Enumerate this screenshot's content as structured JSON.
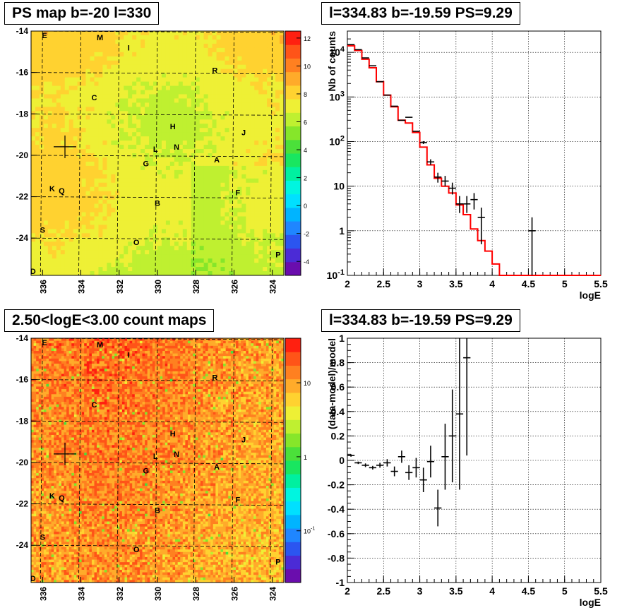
{
  "panels": {
    "ps_map": {
      "title": "PS map b=-20 l=330"
    },
    "spectrum": {
      "title": "l=334.83 b=-19.59 PS=9.29"
    },
    "count_map": {
      "title": "2.50<logE<3.00 count maps"
    },
    "residual": {
      "title": "l=334.83 b=-19.59 PS=9.29"
    }
  },
  "colors": {
    "data": "#000000",
    "model": "#ff0000",
    "grid": "#000000"
  },
  "chart_data": [
    {
      "type": "heatmap",
      "id": "ps_map",
      "title": "PS map b=-20 l=330",
      "x_ticks": [
        "336",
        "334",
        "332",
        "330",
        "328",
        "326",
        "324"
      ],
      "x_tick_values": [
        336,
        334,
        332,
        330,
        328,
        326,
        324
      ],
      "xlim": [
        336.6,
        323.4
      ],
      "y_ticks": [
        "-14",
        "-16",
        "-18",
        "-20",
        "-22",
        "-24"
      ],
      "y_tick_values": [
        -14,
        -16,
        -18,
        -20,
        -22,
        -24
      ],
      "ylim": [
        -25.8,
        -14
      ],
      "colorbar_ticks": [
        "12",
        "10",
        "8",
        "6",
        "4",
        "2",
        "0",
        "-2",
        "-4"
      ],
      "colorbar_values": [
        12,
        10,
        8,
        6,
        4,
        2,
        0,
        -2,
        -4
      ],
      "zlim": [
        -5,
        12.5
      ],
      "marker": {
        "l": 334.83,
        "b": -19.59
      },
      "sources": [
        {
          "name": "E",
          "l": 335.9,
          "b": -14.2
        },
        {
          "name": "M",
          "l": 333.0,
          "b": -14.3
        },
        {
          "name": "I",
          "l": 331.5,
          "b": -14.8
        },
        {
          "name": "R",
          "l": 327.0,
          "b": -15.9
        },
        {
          "name": "C",
          "l": 333.3,
          "b": -17.2
        },
        {
          "name": "H",
          "l": 329.2,
          "b": -18.6
        },
        {
          "name": "J",
          "l": 325.5,
          "b": -18.9
        },
        {
          "name": "L",
          "l": 330.1,
          "b": -19.7
        },
        {
          "name": "N",
          "l": 329.0,
          "b": -19.6
        },
        {
          "name": "G",
          "l": 330.6,
          "b": -20.4
        },
        {
          "name": "A",
          "l": 326.9,
          "b": -20.2
        },
        {
          "name": "K",
          "l": 335.5,
          "b": -21.6
        },
        {
          "name": "Q",
          "l": 335.0,
          "b": -21.7
        },
        {
          "name": "F",
          "l": 325.8,
          "b": -21.8
        },
        {
          "name": "B",
          "l": 330.0,
          "b": -22.3
        },
        {
          "name": "S",
          "l": 336.0,
          "b": -23.6
        },
        {
          "name": "O",
          "l": 331.1,
          "b": -24.2
        },
        {
          "name": "P",
          "l": 323.7,
          "b": -24.8
        },
        {
          "name": "D",
          "l": 336.5,
          "b": -25.6
        }
      ]
    },
    {
      "type": "line",
      "id": "spectrum",
      "title": "l=334.83 b=-19.59 PS=9.29",
      "xlabel": "logE",
      "ylabel": "Nb of counts",
      "xlim": [
        2,
        5.5
      ],
      "ylim": [
        0.1,
        30000
      ],
      "y_scale": "log",
      "x_ticks": [
        "2",
        "2.5",
        "3",
        "3.5",
        "4",
        "4.5",
        "5",
        "5.5"
      ],
      "x_tick_values": [
        2,
        2.5,
        3,
        3.5,
        4,
        4.5,
        5,
        5.5
      ],
      "y_ticks": [
        "10^-1",
        "1",
        "10",
        "10^2",
        "10^3",
        "10^4"
      ],
      "y_tick_values": [
        0.1,
        1,
        10,
        100,
        1000,
        10000
      ],
      "grid": true,
      "model_bin_edges": [
        2.0,
        2.1,
        2.2,
        2.3,
        2.4,
        2.5,
        2.6,
        2.7,
        2.8,
        2.9,
        3.0,
        3.1,
        3.2,
        3.3,
        3.4,
        3.5,
        3.6,
        3.7,
        3.8,
        3.9,
        4.0,
        4.1,
        5.5
      ],
      "model_values": [
        14000,
        11000,
        7000,
        4500,
        2200,
        1100,
        600,
        300,
        260,
        160,
        75,
        30,
        15,
        10,
        7,
        3.8,
        2.3,
        1.1,
        0.6,
        0.35,
        0.18,
        0.1
      ],
      "data_points": [
        {
          "x": 2.05,
          "y": 15000,
          "ylo": 15000,
          "yhi": 15000
        },
        {
          "x": 2.15,
          "y": 11500,
          "ylo": 11500,
          "yhi": 11500
        },
        {
          "x": 2.25,
          "y": 7500,
          "ylo": 7500,
          "yhi": 7500
        },
        {
          "x": 2.35,
          "y": 5000,
          "ylo": 5000,
          "yhi": 5000
        },
        {
          "x": 2.45,
          "y": 2200,
          "ylo": 2200,
          "yhi": 2200
        },
        {
          "x": 2.55,
          "y": 1100,
          "ylo": 1100,
          "yhi": 1100
        },
        {
          "x": 2.65,
          "y": 620,
          "ylo": 620,
          "yhi": 620
        },
        {
          "x": 2.75,
          "y": 300,
          "ylo": 300,
          "yhi": 300
        },
        {
          "x": 2.85,
          "y": 350,
          "ylo": 350,
          "yhi": 350
        },
        {
          "x": 2.95,
          "y": 170,
          "ylo": 170,
          "yhi": 170
        },
        {
          "x": 3.05,
          "y": 95,
          "ylo": 88,
          "yhi": 102
        },
        {
          "x": 3.15,
          "y": 35,
          "ylo": 30,
          "yhi": 40
        },
        {
          "x": 3.25,
          "y": 16,
          "ylo": 12,
          "yhi": 20
        },
        {
          "x": 3.35,
          "y": 13,
          "ylo": 10,
          "yhi": 17
        },
        {
          "x": 3.45,
          "y": 9,
          "ylo": 6.5,
          "yhi": 12
        },
        {
          "x": 3.55,
          "y": 4,
          "ylo": 2.5,
          "yhi": 6
        },
        {
          "x": 3.65,
          "y": 4,
          "ylo": 2.5,
          "yhi": 6
        },
        {
          "x": 3.75,
          "y": 5,
          "ylo": 3,
          "yhi": 7
        },
        {
          "x": 3.85,
          "y": 2,
          "ylo": 0.5,
          "yhi": 3.3
        },
        {
          "x": 4.55,
          "y": 1,
          "ylo": 0.1,
          "yhi": 2
        }
      ]
    },
    {
      "type": "heatmap",
      "id": "count_map",
      "title": "2.50<logE<3.00 count maps",
      "x_ticks": [
        "336",
        "334",
        "332",
        "330",
        "328",
        "326",
        "324"
      ],
      "x_tick_values": [
        336,
        334,
        332,
        330,
        328,
        326,
        324
      ],
      "xlim": [
        336.6,
        323.4
      ],
      "y_ticks": [
        "-14",
        "-16",
        "-18",
        "-20",
        "-22",
        "-24"
      ],
      "y_tick_values": [
        -14,
        -16,
        -18,
        -20,
        -22,
        -24
      ],
      "ylim": [
        -25.8,
        -14
      ],
      "colorbar_ticks": [
        "10",
        "1",
        "10^-1"
      ],
      "colorbar_values": [
        10,
        1,
        0.1
      ],
      "zlim": [
        0.02,
        40
      ],
      "z_scale": "log",
      "marker": {
        "l": 334.83,
        "b": -19.59
      },
      "sources_ref": "ps_map"
    },
    {
      "type": "scatter",
      "id": "residual",
      "title": "l=334.83 b=-19.59 PS=9.29",
      "xlabel": "logE",
      "ylabel": "(data-model)/model",
      "xlim": [
        2,
        5.5
      ],
      "ylim": [
        -1,
        1
      ],
      "x_ticks": [
        "2",
        "2.5",
        "3",
        "3.5",
        "4",
        "4.5",
        "5",
        "5.5"
      ],
      "x_tick_values": [
        2,
        2.5,
        3,
        3.5,
        4,
        4.5,
        5,
        5.5
      ],
      "y_ticks": [
        "1",
        "0.8",
        "0.6",
        "0.4",
        "0.2",
        "0",
        "-0.2",
        "-0.4",
        "-0.6",
        "-0.8",
        "-1"
      ],
      "y_tick_values": [
        1,
        0.8,
        0.6,
        0.4,
        0.2,
        0,
        -0.2,
        -0.4,
        -0.6,
        -0.8,
        -1
      ],
      "grid": true,
      "data_points": [
        {
          "x": 2.05,
          "y": 0.04,
          "err": 0.01
        },
        {
          "x": 2.15,
          "y": -0.02,
          "err": 0.01
        },
        {
          "x": 2.25,
          "y": -0.04,
          "err": 0.015
        },
        {
          "x": 2.35,
          "y": -0.06,
          "err": 0.015
        },
        {
          "x": 2.45,
          "y": -0.04,
          "err": 0.02
        },
        {
          "x": 2.55,
          "y": -0.02,
          "err": 0.03
        },
        {
          "x": 2.65,
          "y": -0.09,
          "err": 0.04
        },
        {
          "x": 2.75,
          "y": 0.03,
          "err": 0.05
        },
        {
          "x": 2.85,
          "y": -0.1,
          "err": 0.06
        },
        {
          "x": 2.95,
          "y": -0.06,
          "err": 0.08
        },
        {
          "x": 3.05,
          "y": -0.16,
          "err": 0.1
        },
        {
          "x": 3.15,
          "y": -0.01,
          "err": 0.13
        },
        {
          "x": 3.25,
          "y": -0.39,
          "err": 0.15
        },
        {
          "x": 3.35,
          "y": 0.03,
          "err": 0.27
        },
        {
          "x": 3.45,
          "y": 0.2,
          "err": 0.38
        },
        {
          "x": 3.55,
          "y": 0.38,
          "err": 0.62
        },
        {
          "x": 3.65,
          "y": 0.84,
          "err": 0.8
        }
      ]
    }
  ]
}
